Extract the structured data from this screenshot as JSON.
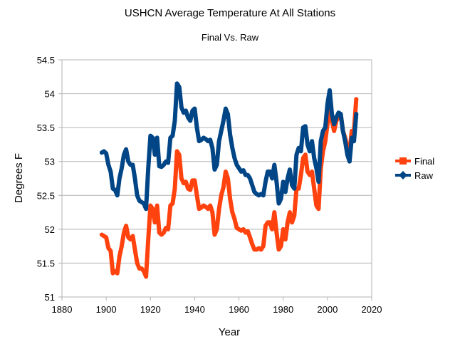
{
  "chart_data": {
    "type": "line",
    "title": "USHCN Average Temperature At All Stations",
    "subtitle": "Final Vs. Raw",
    "xlabel": "Year",
    "ylabel": "Degrees F",
    "xlim": [
      1880,
      2020
    ],
    "ylim": [
      51,
      54.5
    ],
    "x_ticks": [
      "1880",
      "1900",
      "1920",
      "1940",
      "1960",
      "1980",
      "2000",
      "2020"
    ],
    "y_ticks": [
      "51",
      "51.5",
      "52",
      "52.5",
      "53",
      "53.5",
      "54",
      "54.5"
    ],
    "grid": "horizontal",
    "legend_position": "right",
    "start_year": 1898,
    "series": [
      {
        "name": "Final",
        "color": "#ff420e",
        "marker": "square",
        "values": [
          51.92,
          51.9,
          51.88,
          51.72,
          51.68,
          51.35,
          51.38,
          51.35,
          51.6,
          51.75,
          51.95,
          52.05,
          51.88,
          51.85,
          51.9,
          51.7,
          51.5,
          51.42,
          51.42,
          51.38,
          51.3,
          51.85,
          52.35,
          52.3,
          52.1,
          52.35,
          51.95,
          51.92,
          51.95,
          52.02,
          52.0,
          52.35,
          52.38,
          52.6,
          53.15,
          53.1,
          52.75,
          52.68,
          52.7,
          52.6,
          52.58,
          52.72,
          52.72,
          52.5,
          52.3,
          52.32,
          52.35,
          52.33,
          52.3,
          52.35,
          52.25,
          51.92,
          52.0,
          52.3,
          52.5,
          52.62,
          52.85,
          52.75,
          52.45,
          52.25,
          52.15,
          52.02,
          52.0,
          51.98,
          52.0,
          51.95,
          51.97,
          51.88,
          51.78,
          51.7,
          51.7,
          51.72,
          51.7,
          51.75,
          52.05,
          52.1,
          52.1,
          52.0,
          52.25,
          51.95,
          51.7,
          51.75,
          52.0,
          51.85,
          52.1,
          52.25,
          52.1,
          52.2,
          52.6,
          52.6,
          52.8,
          53.05,
          53.1,
          52.85,
          52.8,
          52.85,
          52.6,
          52.35,
          52.3,
          52.9,
          53.15,
          53.3,
          53.55,
          53.88,
          53.6,
          53.45,
          53.6,
          53.65,
          53.7,
          53.45,
          53.35,
          53.2,
          53.15,
          53.45,
          53.45,
          53.92
        ]
      },
      {
        "name": "Raw",
        "color": "#004586",
        "marker": "diamond",
        "values": [
          53.13,
          53.15,
          53.12,
          52.95,
          52.85,
          52.6,
          52.58,
          52.5,
          52.75,
          52.9,
          53.1,
          53.18,
          53.0,
          52.95,
          52.95,
          52.75,
          52.5,
          52.42,
          52.4,
          52.38,
          52.3,
          52.9,
          53.38,
          53.35,
          53.1,
          53.35,
          52.93,
          52.92,
          52.95,
          53.0,
          52.98,
          53.35,
          53.38,
          53.6,
          54.15,
          54.1,
          53.8,
          53.72,
          53.75,
          53.65,
          53.6,
          53.75,
          53.78,
          53.5,
          53.3,
          53.32,
          53.35,
          53.33,
          53.3,
          53.32,
          53.2,
          52.88,
          52.95,
          53.3,
          53.45,
          53.6,
          53.78,
          53.7,
          53.4,
          53.2,
          53.05,
          52.95,
          52.9,
          52.85,
          52.87,
          52.8,
          52.8,
          52.75,
          52.65,
          52.55,
          52.52,
          52.5,
          52.52,
          52.5,
          52.7,
          52.85,
          52.85,
          52.75,
          52.95,
          52.7,
          52.38,
          52.45,
          52.7,
          52.55,
          52.75,
          52.88,
          52.65,
          52.6,
          53.1,
          53.2,
          53.15,
          53.5,
          53.52,
          53.25,
          53.15,
          53.3,
          53.05,
          52.9,
          52.7,
          53.3,
          53.45,
          53.5,
          53.85,
          54.05,
          53.7,
          53.55,
          53.65,
          53.72,
          53.7,
          53.45,
          53.3,
          53.1,
          53.0,
          53.35,
          53.3,
          53.7
        ]
      }
    ]
  }
}
